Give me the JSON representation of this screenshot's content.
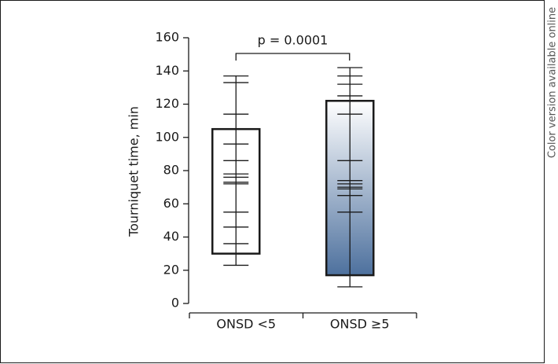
{
  "chart_data": {
    "type": "range-box",
    "y_label": "Tourniquet time, min",
    "side_note": "Color version available online",
    "annotation": "p = 0.0001",
    "categories": [
      "ONSD <5",
      "ONSD ≥5"
    ],
    "ylim": [
      0,
      160
    ],
    "yticks": [
      0,
      20,
      40,
      60,
      80,
      100,
      120,
      140,
      160
    ],
    "boxes": [
      {
        "low": 30,
        "high": 105,
        "whisker_low": 23,
        "whisker_high": 137,
        "color": "#ffffff",
        "gradient": false,
        "points": [
          137,
          133,
          114,
          96,
          86,
          78,
          76,
          73,
          72,
          55,
          46,
          36,
          23
        ]
      },
      {
        "low": 17,
        "high": 122,
        "whisker_low": 10,
        "whisker_high": 142,
        "color": "#3a6193",
        "gradient": true,
        "points": [
          142,
          137,
          132,
          125,
          114,
          86,
          74,
          72,
          70,
          69,
          65,
          55,
          10
        ]
      }
    ]
  }
}
